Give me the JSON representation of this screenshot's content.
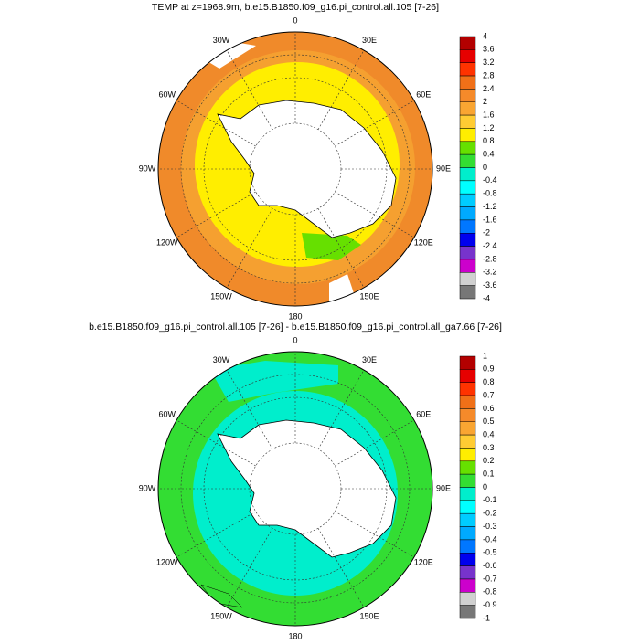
{
  "panels": [
    {
      "title": "TEMP at z=1968.9m, b.e15.B1850.f09_g16.pi_control.all.105 [7-26]",
      "longitudes": [
        "0",
        "30E",
        "60E",
        "90E",
        "120E",
        "150E",
        "180",
        "150W",
        "120W",
        "90W",
        "60W",
        "30W"
      ],
      "colorbar": {
        "labels": [
          4,
          3.6,
          3.2,
          2.8,
          2.4,
          2,
          1.6,
          1.2,
          0.8,
          0.4,
          0,
          -0.4,
          -0.8,
          -1.2,
          -1.6,
          -2,
          -2.4,
          -2.8,
          -3.2,
          -3.6,
          -4
        ],
        "colors": [
          "#b30000",
          "#e60000",
          "#ff3300",
          "#f07018",
          "#f58a2a",
          "#f9a532",
          "#ffcc33",
          "#ffee00",
          "#66e000",
          "#33dd33",
          "#00eecc",
          "#00ffff",
          "#00ccff",
          "#00aaff",
          "#0077ff",
          "#0000ee",
          "#7733cc",
          "#cc00cc",
          "#d0d0d0",
          "#777777"
        ]
      }
    },
    {
      "title": "b.e15.B1850.f09_g16.pi_control.all.105 [7-26] - b.e15.B1850.f09_g16.pi_control.all_ga7.66 [7-26]",
      "longitudes": [
        "0",
        "30E",
        "60E",
        "90E",
        "120E",
        "150E",
        "180",
        "150W",
        "120W",
        "90W",
        "60W",
        "30W"
      ],
      "colorbar": {
        "labels": [
          1,
          0.9,
          0.8,
          0.7,
          0.6,
          0.5,
          0.4,
          0.3,
          0.2,
          0.1,
          0,
          -0.1,
          -0.2,
          -0.3,
          -0.4,
          -0.5,
          -0.6,
          -0.7,
          -0.8,
          -0.9,
          -1
        ],
        "colors": [
          "#b30000",
          "#e60000",
          "#ff3300",
          "#f07018",
          "#f58a2a",
          "#f9a532",
          "#ffcc33",
          "#ffee00",
          "#66e000",
          "#33dd33",
          "#00eecc",
          "#00ffff",
          "#00ccff",
          "#00aaff",
          "#0077ff",
          "#0000ee",
          "#7733cc",
          "#cc00cc",
          "#d0d0d0",
          "#777777"
        ]
      }
    }
  ]
}
